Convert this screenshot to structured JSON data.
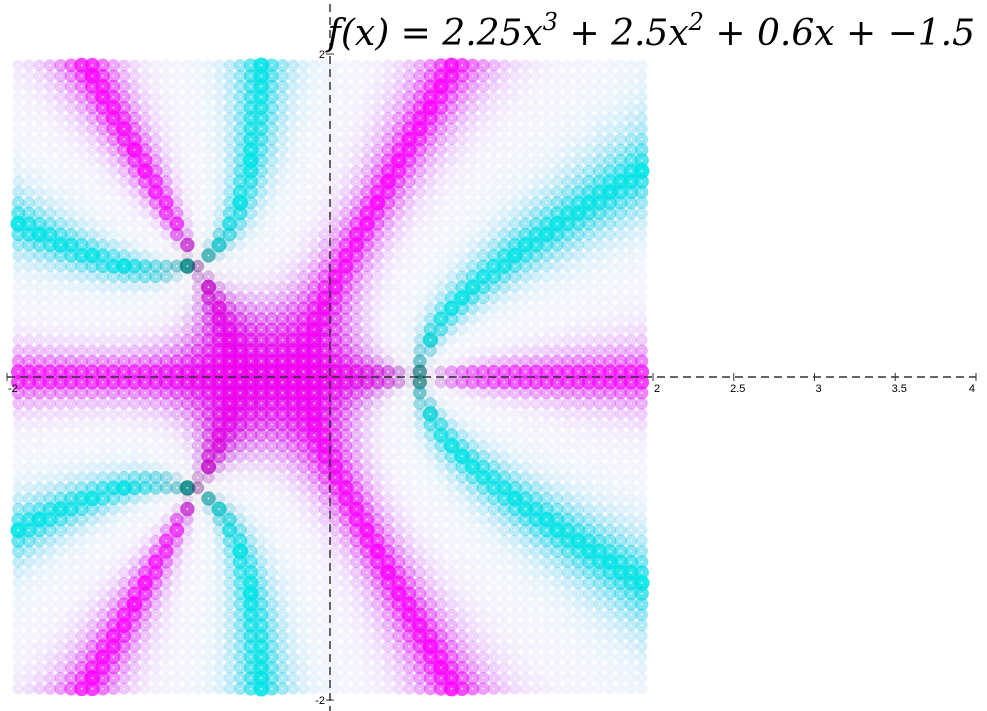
{
  "chart_data": {
    "type": "heatmap",
    "title": "f(x) = 2.25x^3 + 2.5x^2 + 0.6x + −1.5",
    "title_parts": {
      "lhs": "f(x) = 2.25x",
      "exp1": "3",
      "mid": " + 2.5x",
      "exp2": "2",
      "rhs": " + 0.6x + −1.5"
    },
    "xlabel": "",
    "ylabel": "",
    "function_coefficients": [
      2.25,
      2.5,
      0.6,
      -1.5
    ],
    "xlim": [
      -2.0,
      4.0
    ],
    "ylim": [
      -2.0,
      2.0
    ],
    "sample_x_range": [
      -1.93,
      1.93
    ],
    "sample_y_range": [
      -1.93,
      1.93
    ],
    "grid_samples": 60,
    "x_tick_labels": [
      {
        "value": -2,
        "label": "-2"
      },
      {
        "value": 2,
        "label": "2"
      },
      {
        "value": 2.5,
        "label": "2.5"
      },
      {
        "value": 3,
        "label": "3"
      },
      {
        "value": 3.5,
        "label": "3.5"
      },
      {
        "value": 4,
        "label": "4"
      }
    ],
    "y_tick_labels": [
      {
        "value": 2,
        "label": "2"
      },
      {
        "value": -2,
        "label": "-2"
      }
    ],
    "colors": {
      "real_axis_hue": "#ff00ff",
      "imag_axis_hue": "#00e5e5",
      "axis": "#333333",
      "grid_dot": "#ffffff"
    },
    "legend": "none",
    "grid": false
  }
}
